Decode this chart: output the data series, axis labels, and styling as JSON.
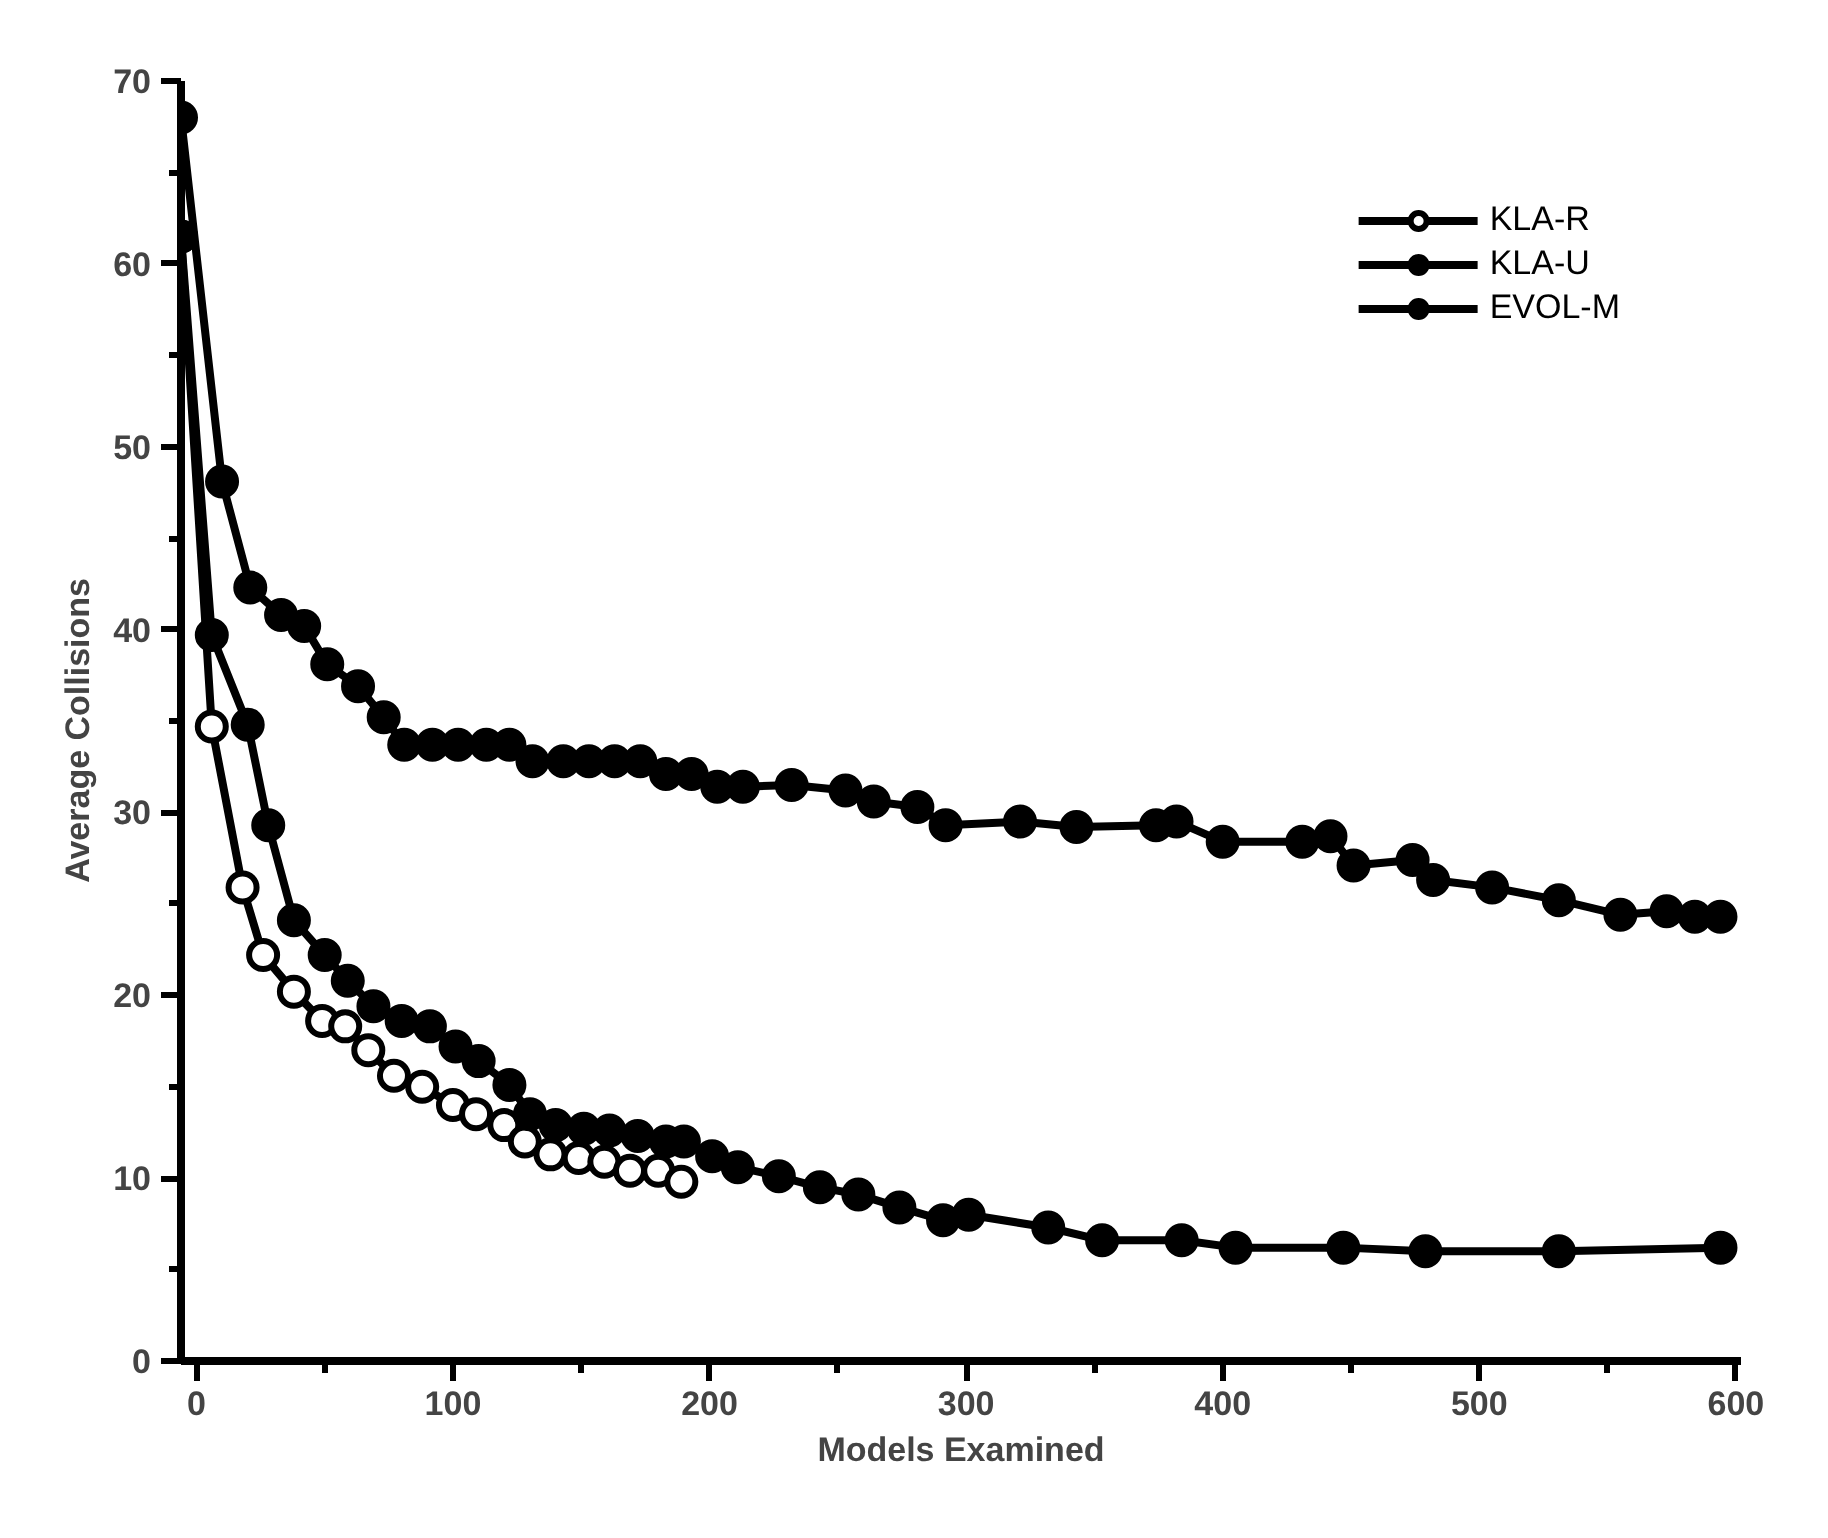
{
  "chart_data": {
    "type": "line",
    "xlabel": "Models Examined",
    "ylabel": "Average   Collisions",
    "xlim": [
      -6,
      602
    ],
    "ylim": [
      0,
      70
    ],
    "xticks": [
      0,
      {
        "value": 50,
        "label": null
      },
      100,
      {
        "value": 150,
        "label": null
      },
      200,
      {
        "value": 250,
        "label": null
      },
      300,
      {
        "value": 350,
        "label": null
      },
      400,
      {
        "value": 450,
        "label": null
      },
      500,
      {
        "value": 550,
        "label": null
      },
      600
    ],
    "yticks": [
      0,
      {
        "value": 5,
        "label": null
      },
      10,
      {
        "value": 15,
        "label": null
      },
      20,
      {
        "value": 25,
        "label": null
      },
      30,
      {
        "value": 35,
        "label": null
      },
      40,
      {
        "value": 45,
        "label": null
      },
      50,
      {
        "value": 55,
        "label": null
      },
      60,
      {
        "value": 65,
        "label": null
      },
      70
    ],
    "grid": false,
    "legend": "top right",
    "line_style": "solid",
    "series": [
      {
        "name": "KLA-R",
        "color": "#000000",
        "marker": "circle_open",
        "x": [
          -6,
          6,
          18,
          26,
          38,
          49,
          58,
          67,
          77,
          88,
          100,
          109,
          120,
          128,
          138,
          149,
          159,
          169,
          180,
          189
        ],
        "values": [
          61.5,
          34.7,
          25.9,
          22.2,
          20.2,
          18.6,
          18.3,
          17.0,
          15.6,
          15.0,
          14.0,
          13.5,
          12.9,
          12.0,
          11.3,
          11.1,
          10.9,
          10.4,
          10.4,
          9.8
        ]
      },
      {
        "name": "KLA-U",
        "color": "#000000",
        "marker": "circle",
        "x": [
          -6,
          6,
          20,
          28,
          38,
          50,
          59,
          69,
          80,
          91,
          101,
          110,
          122,
          130,
          140,
          151,
          161,
          172,
          183,
          190,
          201,
          211,
          227,
          243,
          258,
          274,
          291,
          301,
          332,
          353,
          384,
          405,
          447,
          479,
          531,
          594
        ],
        "values": [
          61.5,
          39.7,
          34.8,
          29.3,
          24.1,
          22.2,
          20.8,
          19.4,
          18.6,
          18.3,
          17.2,
          16.4,
          15.1,
          13.5,
          12.9,
          12.7,
          12.6,
          12.3,
          12.0,
          12.0,
          11.2,
          10.6,
          10.1,
          9.5,
          9.1,
          8.4,
          7.7,
          8.0,
          7.3,
          6.6,
          6.6,
          6.2,
          6.2,
          6.0,
          6.0,
          6.2
        ]
      },
      {
        "name": "EVOL-M",
        "color": "#000000",
        "marker": "circle",
        "x": [
          -6,
          10,
          21,
          33,
          42,
          51,
          63,
          73,
          81,
          92,
          102,
          113,
          122,
          131,
          143,
          153,
          163,
          173,
          183,
          193,
          203,
          213,
          232,
          253,
          264,
          281,
          292,
          321,
          343,
          374,
          382,
          400,
          431,
          442,
          451,
          474,
          482,
          505,
          531,
          555,
          573,
          584,
          594
        ],
        "values": [
          68.0,
          48.1,
          42.3,
          40.8,
          40.2,
          38.1,
          36.9,
          35.2,
          33.7,
          33.7,
          33.7,
          33.7,
          33.7,
          32.8,
          32.8,
          32.8,
          32.8,
          32.8,
          32.1,
          32.1,
          31.4,
          31.4,
          31.5,
          31.2,
          30.6,
          30.3,
          29.3,
          29.5,
          29.2,
          29.3,
          29.5,
          28.4,
          28.4,
          28.7,
          27.1,
          27.4,
          26.3,
          25.9,
          25.2,
          24.4,
          24.6,
          24.3,
          24.3
        ]
      }
    ]
  }
}
